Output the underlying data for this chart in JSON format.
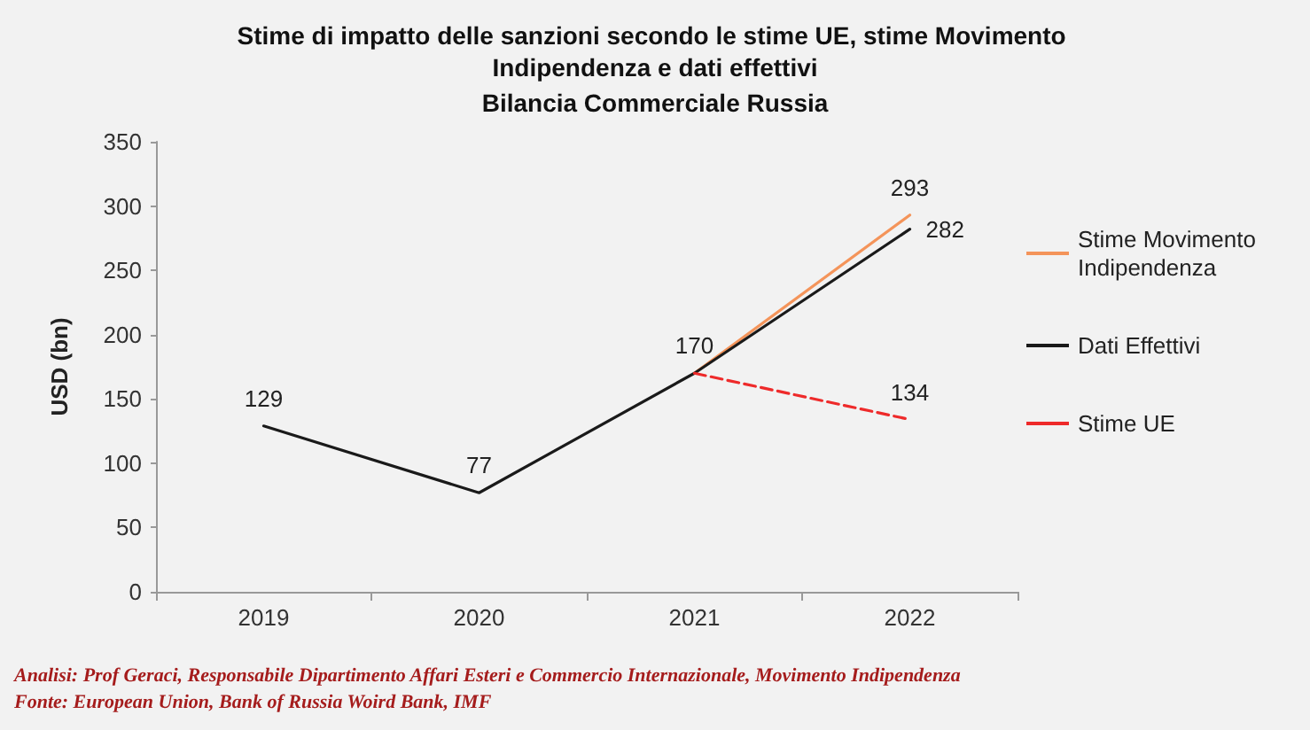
{
  "chart_data": {
    "type": "line",
    "title": "Stime di impatto delle sanzioni secondo le stime UE, stime Movimento Indipendenza e dati effettivi",
    "subtitle": "Bilancia Commerciale Russia",
    "ylabel": "USD (bn)",
    "categories": [
      "2019",
      "2020",
      "2021",
      "2022"
    ],
    "series": [
      {
        "name": "Stime Movimento Indipendenza",
        "color": "#f4945a",
        "values": [
          null,
          null,
          170,
          293
        ],
        "value_labels": [
          null,
          null,
          null,
          "293"
        ],
        "line_style": "solid"
      },
      {
        "name": "Dati Effettivi",
        "color": "#1a1a1a",
        "values": [
          129,
          77,
          170,
          282
        ],
        "value_labels": [
          "129",
          "77",
          "170",
          "282"
        ],
        "line_style": "solid"
      },
      {
        "name": "Stime UE",
        "color": "#ee2a2a",
        "values": [
          null,
          null,
          170,
          134
        ],
        "value_labels": [
          null,
          null,
          null,
          "134"
        ],
        "line_style": "dashed"
      }
    ],
    "ylim": [
      0,
      350
    ],
    "yticks": [
      0,
      50,
      100,
      150,
      200,
      250,
      300,
      350
    ],
    "grid": false,
    "legend": "right",
    "marker": "none",
    "annotations": [
      "Analisi: Prof Geraci, Responsabile Dipartimento Affari Esteri e Commercio Internazionale, Movimento Indipendenza",
      "Fonte: European Union, Bank of Russia Woird Bank, IMF"
    ]
  }
}
